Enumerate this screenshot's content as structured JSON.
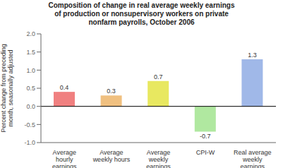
{
  "chart_data": {
    "type": "bar",
    "title": "Composition of change in real average weekly earnings\nof production or nonsupervisory workers on private\nnonfarm payrolls, October 2006",
    "categories": [
      "Average\nhourly\nearnings",
      "Average\nweekly hours",
      "Average\nweekly\nearnings",
      "CPI-W",
      "Real average\nweekly\nearnings"
    ],
    "values": [
      0.4,
      0.3,
      0.7,
      -0.7,
      1.3
    ],
    "colors": [
      "#f08080",
      "#f0c080",
      "#e8e860",
      "#b0e8a0",
      "#a0b8e8"
    ],
    "ylabel": "Percent change from preceding\nmonth, seasonally adjusted",
    "ylim": [
      -1.0,
      2.0
    ],
    "yticks": [
      {
        "value": -1.0,
        "label": "-1.0"
      },
      -0.5,
      {
        "value": 0.0,
        "label": "0.0"
      },
      0.5,
      {
        "value": 1.0,
        "label": "1.0"
      },
      1.5,
      {
        "value": 2.0,
        "label": "2.0"
      }
    ],
    "grid": false,
    "data_labels": true
  }
}
